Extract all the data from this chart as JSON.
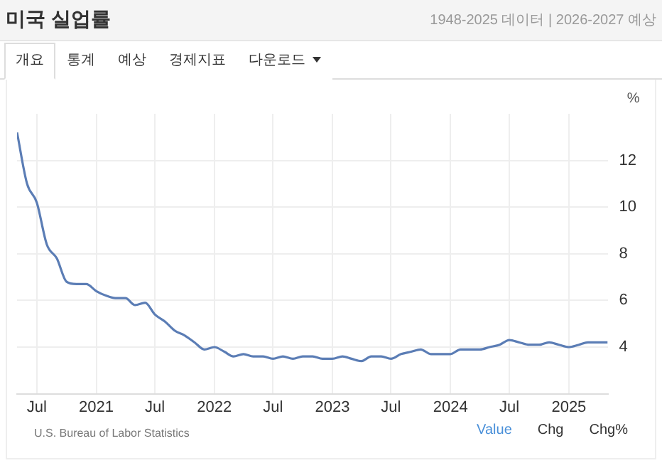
{
  "chart_data": {
    "type": "line",
    "title": "미국 실업률",
    "subtitle": "1948-2025 데이터 | 2026-2027 예상",
    "ylabel": "%",
    "annotations": [
      "개요",
      "통계",
      "예상",
      "경제지표",
      "다운로드",
      "U.S. Bureau of Labor Statistics",
      "Value",
      "Chg",
      "Chg%"
    ],
    "x": [
      "2020-05",
      "2020-06",
      "2020-07",
      "2020-08",
      "2020-09",
      "2020-10",
      "2020-11",
      "2020-12",
      "2021-01",
      "2021-02",
      "2021-03",
      "2021-04",
      "2021-05",
      "2021-06",
      "2021-07",
      "2021-08",
      "2021-09",
      "2021-10",
      "2021-11",
      "2021-12",
      "2022-01",
      "2022-02",
      "2022-03",
      "2022-04",
      "2022-05",
      "2022-06",
      "2022-07",
      "2022-08",
      "2022-09",
      "2022-10",
      "2022-11",
      "2022-12",
      "2023-01",
      "2023-02",
      "2023-03",
      "2023-04",
      "2023-05",
      "2023-06",
      "2023-07",
      "2023-08",
      "2023-09",
      "2023-10",
      "2023-11",
      "2023-12",
      "2024-01",
      "2024-02",
      "2024-03",
      "2024-04",
      "2024-05",
      "2024-06",
      "2024-07",
      "2024-08",
      "2024-09",
      "2024-10",
      "2024-11",
      "2024-12",
      "2025-01",
      "2025-02",
      "2025-03",
      "2025-04",
      "2025-05"
    ],
    "series": [
      {
        "color": "#5b7db5",
        "values": [
          13.2,
          11.0,
          10.2,
          8.4,
          7.8,
          6.8,
          6.7,
          6.7,
          6.4,
          6.2,
          6.1,
          6.1,
          5.8,
          5.9,
          5.4,
          5.1,
          4.7,
          4.5,
          4.2,
          3.9,
          4.0,
          3.8,
          3.6,
          3.7,
          3.6,
          3.6,
          3.5,
          3.6,
          3.5,
          3.6,
          3.6,
          3.5,
          3.5,
          3.6,
          3.5,
          3.4,
          3.6,
          3.6,
          3.5,
          3.7,
          3.8,
          3.9,
          3.7,
          3.7,
          3.7,
          3.9,
          3.9,
          3.9,
          4.0,
          4.1,
          4.3,
          4.2,
          4.1,
          4.1,
          4.2,
          4.1,
          4.0,
          4.1,
          4.2,
          4.2,
          4.2
        ]
      }
    ],
    "xlim": [
      "2020-05",
      "2025-05"
    ],
    "xticks": [
      {
        "value": "2020-07",
        "label": "Jul"
      },
      {
        "value": "2021-01",
        "label": "2021"
      },
      {
        "value": "2021-07",
        "label": "Jul"
      },
      {
        "value": "2022-01",
        "label": "2022"
      },
      {
        "value": "2022-07",
        "label": "Jul"
      },
      {
        "value": "2023-01",
        "label": "2023"
      },
      {
        "value": "2023-07",
        "label": "Jul"
      },
      {
        "value": "2024-01",
        "label": "2024"
      },
      {
        "value": "2024-07",
        "label": "Jul"
      },
      {
        "value": "2025-01",
        "label": "2025"
      }
    ],
    "ylim": [
      2,
      14
    ],
    "yticks": [
      4,
      6,
      8,
      10,
      12
    ],
    "grid": true,
    "legend": false,
    "marker": "none",
    "line_style": "solid"
  }
}
